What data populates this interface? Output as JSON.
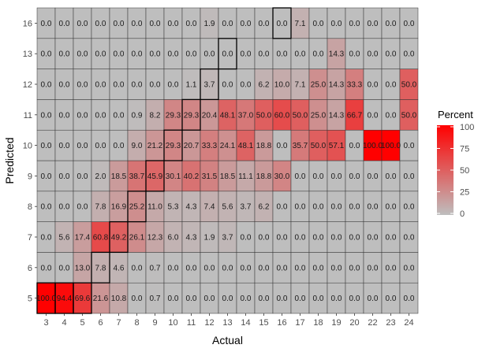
{
  "chart_data": {
    "type": "heatmap",
    "xlabel": "Actual",
    "ylabel": "Predicted",
    "x": [
      "3",
      "4",
      "5",
      "6",
      "7",
      "8",
      "9",
      "10",
      "11",
      "12",
      "13",
      "14",
      "15",
      "16",
      "17",
      "18",
      "19",
      "20",
      "22",
      "23",
      "24"
    ],
    "y": [
      "5",
      "6",
      "7",
      "8",
      "9",
      "10",
      "11",
      "12",
      "13",
      "16"
    ],
    "values": {
      "16": [
        0.0,
        0.0,
        0.0,
        0.0,
        0.0,
        0.0,
        0.0,
        0.0,
        0.0,
        1.9,
        0.0,
        0.0,
        0.0,
        0.0,
        7.1,
        0.0,
        0.0,
        0.0,
        0.0,
        0.0,
        0.0
      ],
      "13": [
        0.0,
        0.0,
        0.0,
        0.0,
        0.0,
        0.0,
        0.0,
        0.0,
        0.0,
        0.0,
        0.0,
        0.0,
        0.0,
        0.0,
        0.0,
        0.0,
        14.3,
        0.0,
        0.0,
        0.0,
        0.0
      ],
      "12": [
        0.0,
        0.0,
        0.0,
        0.0,
        0.0,
        0.0,
        0.0,
        0.0,
        1.1,
        3.7,
        0.0,
        0.0,
        6.2,
        10.0,
        7.1,
        25.0,
        14.3,
        33.3,
        0.0,
        0.0,
        50.0
      ],
      "11": [
        0.0,
        0.0,
        0.0,
        0.0,
        0.0,
        0.9,
        8.2,
        29.3,
        29.3,
        20.4,
        48.1,
        37.0,
        50.0,
        60.0,
        50.0,
        25.0,
        14.3,
        66.7,
        0.0,
        0.0,
        50.0
      ],
      "10": [
        0.0,
        0.0,
        0.0,
        0.0,
        0.0,
        9.0,
        21.2,
        29.3,
        20.7,
        33.3,
        24.1,
        48.1,
        18.8,
        0.0,
        35.7,
        50.0,
        57.1,
        0.0,
        100.0,
        100.0,
        0.0
      ],
      "9": [
        0.0,
        0.0,
        0.0,
        2.0,
        18.5,
        38.7,
        45.9,
        30.1,
        40.2,
        31.5,
        18.5,
        11.1,
        18.8,
        30.0,
        0.0,
        0.0,
        0.0,
        0.0,
        0.0,
        0.0,
        0.0
      ],
      "8": [
        0.0,
        0.0,
        0.0,
        7.8,
        16.9,
        25.2,
        11.0,
        5.3,
        4.3,
        7.4,
        5.6,
        3.7,
        6.2,
        0.0,
        0.0,
        0.0,
        0.0,
        0.0,
        0.0,
        0.0,
        0.0
      ],
      "7": [
        0.0,
        5.6,
        17.4,
        60.8,
        49.2,
        26.1,
        12.3,
        6.0,
        4.3,
        1.9,
        3.7,
        0.0,
        0.0,
        0.0,
        0.0,
        0.0,
        0.0,
        0.0,
        0.0,
        0.0,
        0.0
      ],
      "6": [
        0.0,
        0.0,
        13.0,
        7.8,
        4.6,
        0.0,
        0.7,
        0.0,
        0.0,
        0.0,
        0.0,
        0.0,
        0.0,
        0.0,
        0.0,
        0.0,
        0.0,
        0.0,
        0.0,
        0.0,
        0.0
      ],
      "5": [
        100.0,
        94.4,
        69.6,
        21.6,
        10.8,
        0.0,
        0.7,
        0.0,
        0.0,
        0.0,
        0.0,
        0.0,
        0.0,
        0.0,
        0.0,
        0.0,
        0.0,
        0.0,
        0.0,
        0.0,
        0.0
      ]
    },
    "highlighted_cells": [
      {
        "x": "3",
        "y": "5"
      },
      {
        "x": "4",
        "y": "5"
      },
      {
        "x": "5",
        "y": "5"
      },
      {
        "x": "6",
        "y": "6"
      },
      {
        "x": "7",
        "y": "7"
      },
      {
        "x": "8",
        "y": "8"
      },
      {
        "x": "9",
        "y": "9"
      },
      {
        "x": "10",
        "y": "10"
      },
      {
        "x": "11",
        "y": "11"
      },
      {
        "x": "12",
        "y": "12"
      },
      {
        "x": "13",
        "y": "13"
      },
      {
        "x": "16",
        "y": "16"
      }
    ],
    "legend": {
      "title": "Percent",
      "ticks": [
        "100",
        "75",
        "50",
        "25",
        "0"
      ],
      "range": [
        0,
        100
      ],
      "low_color": "#bebebe",
      "high_color": "#ff0000",
      "placement": "right"
    }
  }
}
